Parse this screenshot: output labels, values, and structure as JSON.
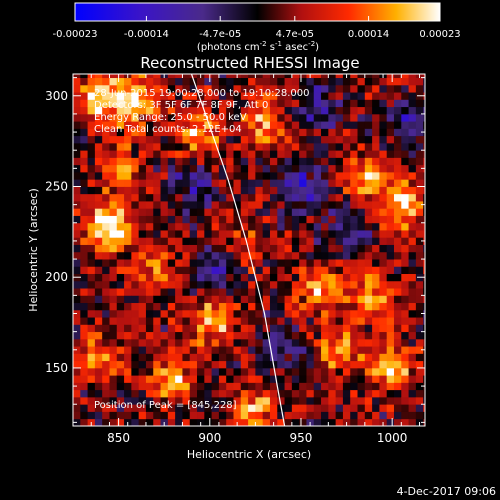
{
  "chart_data": {
    "type": "heatmap",
    "title": "Reconstructed RHESSI Image",
    "xlabel": "Heliocentric X (arcsec)",
    "ylabel": "Heliocentric Y (arcsec)",
    "xlim": [
      825,
      1018
    ],
    "ylim": [
      118,
      312
    ],
    "x_ticks": [
      850,
      900,
      950,
      1000
    ],
    "y_ticks": [
      150,
      200,
      250,
      300
    ],
    "colorbar": {
      "min": -0.00023,
      "max": 0.00023,
      "tick_values": [
        -0.00023,
        -0.00014,
        -4.7e-05,
        4.7e-05,
        0.00014,
        0.00023
      ],
      "tick_labels": [
        "-0.00023",
        "-0.00014",
        "-4.7e-05",
        "4.7e-05",
        "0.00014",
        "0.00023"
      ],
      "unit_label_parts": [
        "(photons cm",
        "-2",
        " s",
        "-1",
        " asec",
        "-2",
        ")"
      ]
    },
    "annotations": [
      "28-Jun-2015 19:00:28.000 to 19:10:28.000",
      "Detectors: 3F 5F 6F 7F 8F 9F, Att 0",
      "Energy Range: 25.0 - 50.0 keV",
      "Clean   Total counts: 2.12E+04"
    ],
    "peak_label": "Position of Peak = [845,228]",
    "peak": [
      845,
      228
    ],
    "limb": [
      [
        890,
        312
      ],
      [
        900,
        283
      ],
      [
        910,
        254
      ],
      [
        920,
        220
      ],
      [
        930,
        180
      ],
      [
        937,
        140
      ],
      [
        941,
        118
      ]
    ],
    "hotspots": [
      [
        845,
        228,
        1.0
      ],
      [
        840,
        300,
        0.8
      ],
      [
        860,
        298,
        0.7
      ],
      [
        893,
        280,
        0.6
      ],
      [
        930,
        285,
        0.5
      ],
      [
        985,
        255,
        0.6
      ],
      [
        1005,
        240,
        0.7
      ],
      [
        960,
        195,
        0.6
      ],
      [
        970,
        160,
        0.5
      ],
      [
        1000,
        150,
        0.6
      ],
      [
        900,
        175,
        0.6
      ],
      [
        880,
        145,
        0.5
      ],
      [
        840,
        155,
        0.5
      ],
      [
        925,
        128,
        0.5
      ],
      [
        850,
        260,
        0.4
      ],
      [
        915,
        215,
        0.4
      ],
      [
        990,
        190,
        0.5
      ],
      [
        870,
        205,
        0.4
      ]
    ],
    "coldspots": [
      [
        905,
        205,
        -0.5
      ],
      [
        950,
        248,
        -0.55
      ],
      [
        960,
        295,
        -0.45
      ],
      [
        890,
        250,
        -0.4
      ],
      [
        1010,
        285,
        -0.4
      ],
      [
        940,
        160,
        -0.35
      ],
      [
        975,
        225,
        -0.35
      ]
    ]
  },
  "footer": {
    "timestamp": "4-Dec-2017 09:06"
  }
}
